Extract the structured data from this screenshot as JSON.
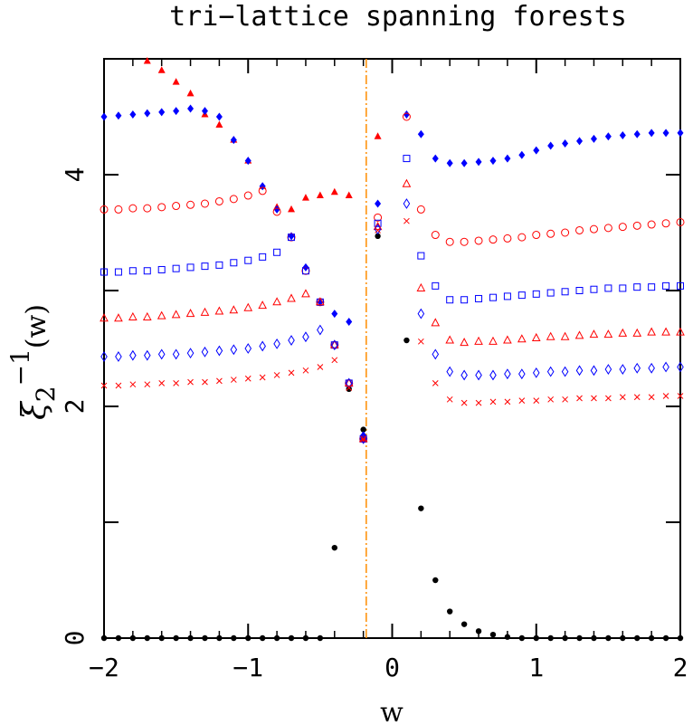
{
  "chart_data": {
    "type": "scatter",
    "title": "tri−lattice spanning forests",
    "xlabel": "w",
    "ylabel": {
      "main": "ξ",
      "sub": "2",
      "sup": "−1",
      "arg": "(w)"
    },
    "xlim": [
      -2,
      2
    ],
    "ylim": [
      0,
      5
    ],
    "xticks": [
      -2,
      -1,
      0,
      1,
      2
    ],
    "xtick_labels": [
      "−2",
      "−1",
      "0",
      "1",
      "2"
    ],
    "yticks": [
      0,
      1,
      2,
      3,
      4,
      5
    ],
    "ytick_labels": [
      "0",
      "",
      "2",
      "",
      "4",
      ""
    ],
    "minor_ticks": true,
    "grid": false,
    "vline": {
      "x": -0.18,
      "color": "#ff8c00",
      "style": "dash-dot"
    },
    "series": [
      {
        "marker": "filled-circle",
        "color": "#000000",
        "x": [
          -2.0,
          -1.9,
          -1.8,
          -1.7,
          -1.6,
          -1.5,
          -1.4,
          -1.3,
          -1.2,
          -1.1,
          -1.0,
          -0.9,
          -0.8,
          -0.7,
          -0.6,
          -0.5,
          -0.4,
          -0.3,
          -0.2,
          -0.1,
          0.1,
          0.2,
          0.3,
          0.4,
          0.5,
          0.6,
          0.7,
          0.8,
          0.9,
          1.0,
          1.1,
          1.2,
          1.3,
          1.4,
          1.5,
          1.6,
          1.7,
          1.8,
          1.9,
          2.0
        ],
        "y": [
          0,
          0,
          0,
          0,
          0,
          0,
          0,
          0,
          0,
          0,
          0,
          0,
          0,
          0,
          0,
          0,
          0.78,
          2.15,
          1.8,
          3.47,
          2.57,
          1.12,
          0.5,
          0.23,
          0.12,
          0.06,
          0.03,
          0.01,
          0,
          0,
          0,
          0,
          0,
          0,
          0,
          0,
          0,
          0,
          0,
          0
        ]
      },
      {
        "marker": "filled-triangle",
        "color": "#ff0000",
        "x": [
          -1.7,
          -1.6,
          -1.5,
          -1.4,
          -1.3,
          -1.2,
          -1.1,
          -1.0,
          -0.9,
          -0.8,
          -0.7,
          -0.6,
          -0.5,
          -0.4,
          -0.3,
          -0.2,
          -0.1
        ],
        "y": [
          4.98,
          4.9,
          4.8,
          4.7,
          4.52,
          4.43,
          4.3,
          4.12,
          3.9,
          3.72,
          3.7,
          3.8,
          3.82,
          3.85,
          3.82,
          1.72,
          4.33
        ]
      },
      {
        "marker": "filled-diamond",
        "color": "#0000ff",
        "x": [
          -2.0,
          -1.9,
          -1.8,
          -1.7,
          -1.6,
          -1.5,
          -1.4,
          -1.3,
          -1.2,
          -1.1,
          -1.0,
          -0.9,
          -0.8,
          -0.7,
          -0.6,
          -0.5,
          -0.4,
          -0.3,
          -0.2,
          -0.1,
          0.1,
          0.2,
          0.3,
          0.4,
          0.5,
          0.6,
          0.7,
          0.8,
          0.9,
          1.0,
          1.1,
          1.2,
          1.3,
          1.4,
          1.5,
          1.6,
          1.7,
          1.8,
          1.9,
          2.0
        ],
        "y": [
          4.5,
          4.51,
          4.52,
          4.53,
          4.54,
          4.55,
          4.57,
          4.55,
          4.5,
          4.3,
          4.12,
          3.9,
          3.7,
          3.47,
          3.2,
          2.9,
          2.8,
          2.73,
          1.75,
          3.75,
          4.52,
          4.35,
          4.14,
          4.1,
          4.1,
          4.11,
          4.12,
          4.14,
          4.17,
          4.21,
          4.25,
          4.27,
          4.29,
          4.31,
          4.33,
          4.34,
          4.35,
          4.36,
          4.36,
          4.36
        ]
      },
      {
        "marker": "open-circle",
        "color": "#ff0000",
        "x": [
          -2.0,
          -1.9,
          -1.8,
          -1.7,
          -1.6,
          -1.5,
          -1.4,
          -1.3,
          -1.2,
          -1.1,
          -1.0,
          -0.9,
          -0.8,
          -0.7,
          -0.6,
          -0.5,
          -0.4,
          -0.3,
          -0.2,
          -0.1,
          0.1,
          0.2,
          0.3,
          0.4,
          0.5,
          0.6,
          0.7,
          0.8,
          0.9,
          1.0,
          1.1,
          1.2,
          1.3,
          1.4,
          1.5,
          1.6,
          1.7,
          1.8,
          1.9,
          2.0
        ],
        "y": [
          3.7,
          3.7,
          3.71,
          3.71,
          3.72,
          3.73,
          3.74,
          3.75,
          3.77,
          3.79,
          3.82,
          3.86,
          3.68,
          3.46,
          3.17,
          2.9,
          2.53,
          2.2,
          1.72,
          3.63,
          4.5,
          3.7,
          3.48,
          3.42,
          3.42,
          3.43,
          3.44,
          3.45,
          3.46,
          3.48,
          3.49,
          3.5,
          3.52,
          3.53,
          3.54,
          3.55,
          3.56,
          3.57,
          3.58,
          3.59
        ]
      },
      {
        "marker": "open-square",
        "color": "#0000ff",
        "x": [
          -2.0,
          -1.9,
          -1.8,
          -1.7,
          -1.6,
          -1.5,
          -1.4,
          -1.3,
          -1.2,
          -1.1,
          -1.0,
          -0.9,
          -0.8,
          -0.7,
          -0.6,
          -0.5,
          -0.4,
          -0.3,
          -0.2,
          -0.1,
          0.1,
          0.2,
          0.3,
          0.4,
          0.5,
          0.6,
          0.7,
          0.8,
          0.9,
          1.0,
          1.1,
          1.2,
          1.3,
          1.4,
          1.5,
          1.6,
          1.7,
          1.8,
          1.9,
          2.0
        ],
        "y": [
          3.16,
          3.16,
          3.17,
          3.17,
          3.18,
          3.19,
          3.2,
          3.21,
          3.22,
          3.24,
          3.26,
          3.29,
          3.33,
          3.46,
          3.17,
          2.9,
          2.53,
          2.2,
          1.72,
          3.58,
          4.14,
          3.3,
          3.04,
          2.92,
          2.92,
          2.93,
          2.94,
          2.95,
          2.96,
          2.97,
          2.98,
          2.99,
          3.0,
          3.01,
          3.02,
          3.02,
          3.03,
          3.03,
          3.04,
          3.04
        ]
      },
      {
        "marker": "open-triangle",
        "color": "#ff0000",
        "x": [
          -2.0,
          -1.9,
          -1.8,
          -1.7,
          -1.6,
          -1.5,
          -1.4,
          -1.3,
          -1.2,
          -1.1,
          -1.0,
          -0.9,
          -0.8,
          -0.7,
          -0.6,
          -0.5,
          -0.4,
          -0.3,
          -0.2,
          -0.1,
          0.1,
          0.2,
          0.3,
          0.4,
          0.5,
          0.6,
          0.7,
          0.8,
          0.9,
          1.0,
          1.1,
          1.2,
          1.3,
          1.4,
          1.5,
          1.6,
          1.7,
          1.8,
          1.9,
          2.0
        ],
        "y": [
          2.76,
          2.76,
          2.77,
          2.77,
          2.78,
          2.79,
          2.8,
          2.81,
          2.82,
          2.83,
          2.85,
          2.87,
          2.9,
          2.93,
          2.97,
          2.9,
          2.53,
          2.2,
          1.72,
          3.55,
          3.92,
          3.02,
          2.72,
          2.57,
          2.55,
          2.56,
          2.56,
          2.57,
          2.58,
          2.59,
          2.6,
          2.6,
          2.61,
          2.62,
          2.62,
          2.63,
          2.63,
          2.64,
          2.64,
          2.64
        ]
      },
      {
        "marker": "open-diamond",
        "color": "#0000ff",
        "x": [
          -2.0,
          -1.9,
          -1.8,
          -1.7,
          -1.6,
          -1.5,
          -1.4,
          -1.3,
          -1.2,
          -1.1,
          -1.0,
          -0.9,
          -0.8,
          -0.7,
          -0.6,
          -0.5,
          -0.4,
          -0.3,
          -0.2,
          -0.1,
          0.1,
          0.2,
          0.3,
          0.4,
          0.5,
          0.6,
          0.7,
          0.8,
          0.9,
          1.0,
          1.1,
          1.2,
          1.3,
          1.4,
          1.5,
          1.6,
          1.7,
          1.8,
          1.9,
          2.0
        ],
        "y": [
          2.43,
          2.43,
          2.44,
          2.44,
          2.45,
          2.45,
          2.46,
          2.47,
          2.48,
          2.49,
          2.5,
          2.52,
          2.54,
          2.57,
          2.6,
          2.66,
          2.53,
          2.2,
          1.72,
          3.53,
          3.75,
          2.8,
          2.45,
          2.3,
          2.27,
          2.27,
          2.27,
          2.28,
          2.28,
          2.29,
          2.3,
          2.3,
          2.31,
          2.31,
          2.32,
          2.32,
          2.33,
          2.33,
          2.34,
          2.34
        ]
      },
      {
        "marker": "cross",
        "color": "#ff0000",
        "x": [
          -2.0,
          -1.9,
          -1.8,
          -1.7,
          -1.6,
          -1.5,
          -1.4,
          -1.3,
          -1.2,
          -1.1,
          -1.0,
          -0.9,
          -0.8,
          -0.7,
          -0.6,
          -0.5,
          -0.4,
          -0.3,
          -0.2,
          -0.1,
          0.1,
          0.2,
          0.3,
          0.4,
          0.5,
          0.6,
          0.7,
          0.8,
          0.9,
          1.0,
          1.1,
          1.2,
          1.3,
          1.4,
          1.5,
          1.6,
          1.7,
          1.8,
          1.9,
          2.0
        ],
        "y": [
          2.18,
          2.18,
          2.19,
          2.19,
          2.2,
          2.2,
          2.21,
          2.21,
          2.22,
          2.23,
          2.24,
          2.25,
          2.27,
          2.29,
          2.31,
          2.34,
          2.4,
          2.16,
          1.72,
          3.52,
          3.6,
          2.56,
          2.2,
          2.06,
          2.03,
          2.03,
          2.04,
          2.04,
          2.05,
          2.05,
          2.06,
          2.06,
          2.07,
          2.07,
          2.07,
          2.08,
          2.08,
          2.08,
          2.09,
          2.09
        ]
      }
    ]
  }
}
